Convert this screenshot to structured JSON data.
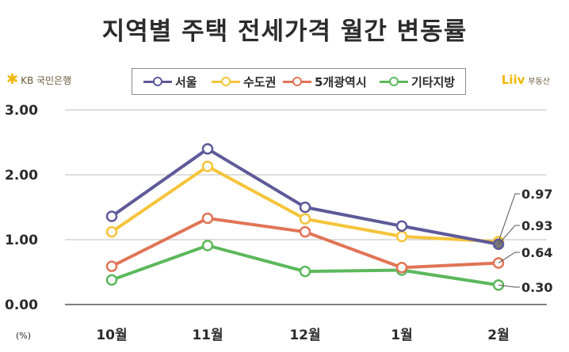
{
  "title": "지역별 주택 전세가격 월간 변동률",
  "logos": {
    "left": "KB 국민은행",
    "right_mark": "Liiv",
    "right_text": "부동산"
  },
  "colors": {
    "서울": "#5e5a99",
    "수도권": "#f5c43a",
    "5개광역시": "#e07456",
    "기타지방": "#5cb85c"
  },
  "chart_data": {
    "type": "line",
    "title": "지역별 주택 전세가격 월간 변동률",
    "unit_label": "(%)",
    "categories": [
      "10월",
      "11월",
      "12월",
      "1월",
      "2월"
    ],
    "yticks": [
      "0.00",
      "1.00",
      "2.00",
      "3.00"
    ],
    "ylim": [
      0,
      3
    ],
    "legend_position": "top",
    "series": [
      {
        "name": "서울",
        "values": [
          1.36,
          2.4,
          1.5,
          1.21,
          0.93
        ],
        "color": "#5e5a99"
      },
      {
        "name": "수도권",
        "values": [
          1.12,
          2.13,
          1.32,
          1.05,
          0.97
        ],
        "color": "#f5c43a"
      },
      {
        "name": "5개광역시",
        "values": [
          0.59,
          1.33,
          1.12,
          0.57,
          0.64
        ],
        "color": "#e07456"
      },
      {
        "name": "기타지방",
        "values": [
          0.38,
          0.91,
          0.51,
          0.53,
          0.3
        ],
        "color": "#5cb85c"
      }
    ],
    "data_labels": [
      {
        "series": "수도권",
        "text": "0.97"
      },
      {
        "series": "서울",
        "text": "0.93"
      },
      {
        "series": "5개광역시",
        "text": "0.64"
      },
      {
        "series": "기타지방",
        "text": "0.30"
      }
    ]
  }
}
